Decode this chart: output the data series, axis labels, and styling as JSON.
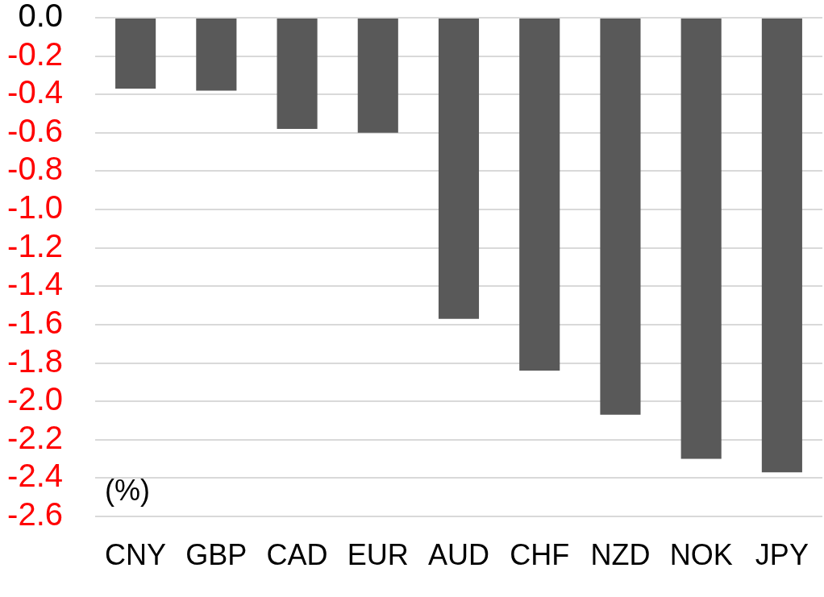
{
  "chart_data": {
    "type": "bar",
    "ylabel": "(%)",
    "categories": [
      "CNY",
      "GBP",
      "CAD",
      "EUR",
      "AUD",
      "CHF",
      "NZD",
      "NOK",
      "JPY"
    ],
    "values": [
      -0.37,
      -0.38,
      -0.58,
      -0.6,
      -1.57,
      -1.84,
      -2.07,
      -2.3,
      -2.37
    ],
    "color": "#595959",
    "ylim": [
      -2.6,
      0
    ],
    "yticks": [
      {
        "value": 0,
        "label": "0.0"
      },
      {
        "value": -0.2,
        "label": "-0.2"
      },
      {
        "value": -0.4,
        "label": "-0.4"
      },
      {
        "value": -0.6,
        "label": "-0.6"
      },
      {
        "value": -0.8,
        "label": "-0.8"
      },
      {
        "value": -1.0,
        "label": "-1.0"
      },
      {
        "value": -1.2,
        "label": "-1.2"
      },
      {
        "value": -1.4,
        "label": "-1.4"
      },
      {
        "value": -1.6,
        "label": "-1.6"
      },
      {
        "value": -1.8,
        "label": "-1.8"
      },
      {
        "value": -2.0,
        "label": "-2.0"
      },
      {
        "value": -2.2,
        "label": "-2.2"
      },
      {
        "value": -2.4,
        "label": "-2.4"
      },
      {
        "value": -2.6,
        "label": "-2.6"
      }
    ],
    "grid": "y"
  }
}
